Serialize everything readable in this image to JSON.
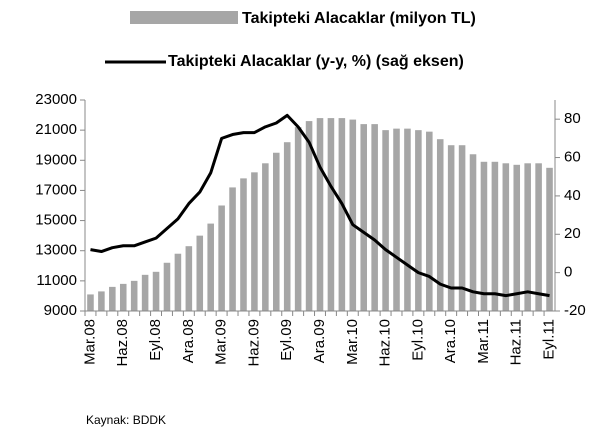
{
  "chart_data": {
    "type": "bar_line",
    "source": "Kaynak: BDDK",
    "categories": [
      "Mar.08",
      null,
      null,
      "Haz.08",
      null,
      null,
      "Eyl.08",
      null,
      null,
      "Ara.08",
      null,
      null,
      "Mar.09",
      null,
      null,
      "Haz.09",
      null,
      null,
      "Eyl.09",
      null,
      null,
      "Ara.09",
      null,
      null,
      "Mar.10",
      null,
      null,
      "Haz.10",
      null,
      null,
      "Eyl.10",
      null,
      null,
      "Ara.10",
      null,
      null,
      "Mar.11",
      null,
      null,
      "Haz.11",
      null,
      null,
      "Eyl.11"
    ],
    "series": [
      {
        "name": "Takipteki Alacaklar (milyon TL)",
        "type": "bar",
        "color": "#a6a6a6",
        "values": [
          10100,
          10300,
          10600,
          10800,
          11000,
          11400,
          11600,
          12200,
          12800,
          13300,
          14000,
          14800,
          16000,
          17200,
          17800,
          18200,
          18800,
          19500,
          20200,
          21200,
          21600,
          21800,
          21800,
          21800,
          21700,
          21400,
          21400,
          21000,
          21100,
          21100,
          21000,
          20900,
          20400,
          20000,
          20000,
          19400,
          18900,
          18900,
          18800,
          18700,
          18800,
          18800,
          18500
        ]
      },
      {
        "name": "Takipteki Alacaklar (y-y, %) (sağ eksen)",
        "type": "line",
        "axis": "y2",
        "color": "#000000",
        "values": [
          12,
          11,
          13,
          14,
          14,
          16,
          18,
          23,
          28,
          36,
          42,
          52,
          70,
          72,
          73,
          73,
          76,
          78,
          82,
          76,
          68,
          55,
          45,
          36,
          25,
          21,
          17,
          12,
          8,
          4,
          0,
          -2,
          -6,
          -8,
          -8,
          -10,
          -11,
          -11,
          -12,
          -11,
          -10,
          -11,
          -12
        ]
      }
    ],
    "ylim": [
      9000,
      23000
    ],
    "yticks": [
      9000,
      11000,
      13000,
      15000,
      17000,
      19000,
      21000,
      23000
    ],
    "y2lim": [
      -20,
      90
    ],
    "y2ticks": [
      -20,
      0,
      20,
      40,
      60,
      80
    ]
  }
}
